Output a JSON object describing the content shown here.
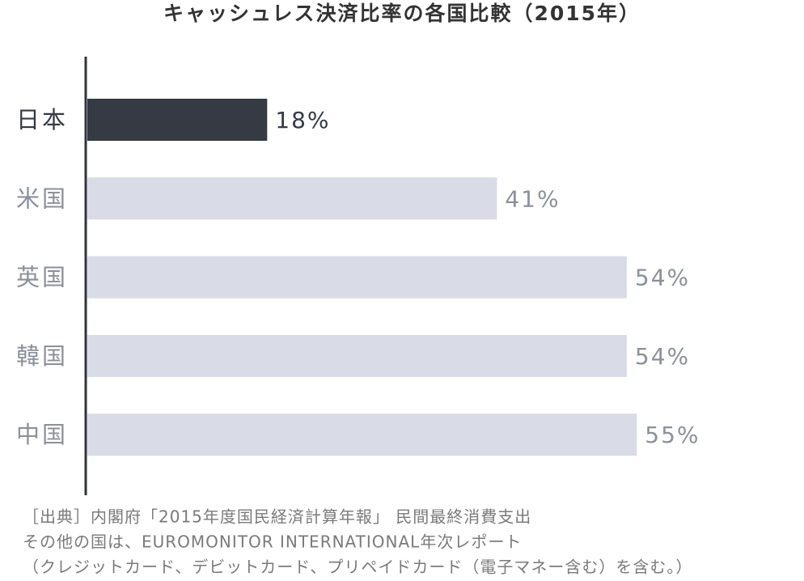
{
  "chart_data": {
    "type": "bar",
    "orientation": "horizontal",
    "title": "キャッシュレス決済比率の各国比較（2015年）",
    "categories": [
      "日本",
      "米国",
      "英国",
      "韓国",
      "中国"
    ],
    "values": [
      18,
      41,
      54,
      54,
      55
    ],
    "value_labels": [
      "18%",
      "41%",
      "54%",
      "54%",
      "55%"
    ],
    "colors": [
      "#353a43",
      "#d9dce6",
      "#d9dce6",
      "#d9dce6",
      "#d9dce6"
    ],
    "notes": [
      "［出典］内閣府「2015年度国民経済計算年報」 民間最終消費支出",
      "その他の国は、EUROMONITOR INTERNATIONAL年次レポート",
      "（クレジットカード、デビットカード、プリペイドカード（電子マネー含む）を含む。）"
    ]
  }
}
